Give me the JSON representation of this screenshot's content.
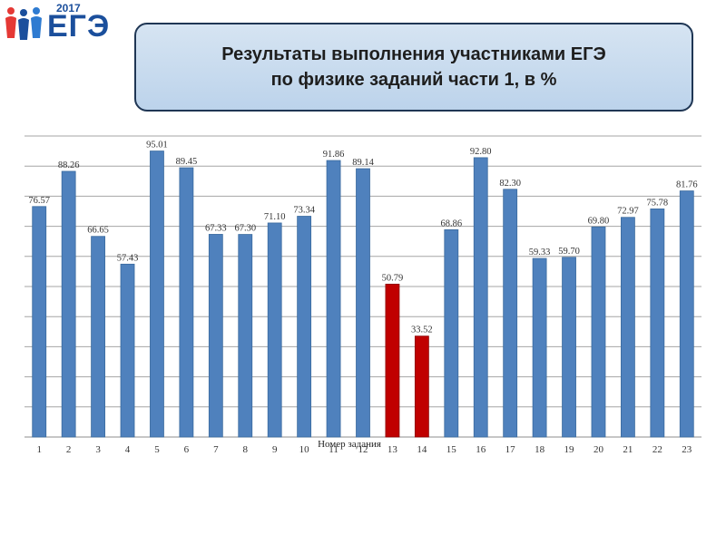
{
  "logo": {
    "year": "2017",
    "word": "ЕГЭ"
  },
  "header": {
    "title_line1": "Результаты выполнения участниками ЕГЭ",
    "title_line2": "по физике заданий части 1, в %"
  },
  "chart_data": {
    "type": "bar",
    "title": "Результаты выполнения участниками ЕГЭ по физике заданий части 1, в %",
    "xlabel": "Номер задания",
    "ylabel": "",
    "categories": [
      "1",
      "2",
      "3",
      "4",
      "5",
      "6",
      "7",
      "8",
      "9",
      "10",
      "11",
      "12",
      "13",
      "14",
      "15",
      "16",
      "17",
      "18",
      "19",
      "20",
      "21",
      "22",
      "23"
    ],
    "values": [
      76.57,
      88.26,
      66.65,
      57.43,
      95.01,
      89.45,
      67.33,
      67.3,
      71.1,
      73.34,
      91.86,
      89.14,
      50.79,
      33.52,
      68.86,
      92.8,
      82.3,
      59.33,
      59.7,
      69.8,
      72.97,
      75.78,
      81.76
    ],
    "value_labels": [
      "76.57",
      "88.26",
      "66.65",
      "57.43",
      "95.01",
      "89.45",
      "67.33",
      "67.30",
      "71.10",
      "73.34",
      "91.86",
      "89.14",
      "50.79",
      "33.52",
      "68.86",
      "92.80",
      "82.30",
      "59.33",
      "59.70",
      "69.80",
      "72.97",
      "75.78",
      "81.76"
    ],
    "bar_colors": [
      "#4f81bd",
      "#4f81bd",
      "#4f81bd",
      "#4f81bd",
      "#4f81bd",
      "#4f81bd",
      "#4f81bd",
      "#4f81bd",
      "#4f81bd",
      "#4f81bd",
      "#4f81bd",
      "#4f81bd",
      "#c00000",
      "#c00000",
      "#4f81bd",
      "#4f81bd",
      "#4f81bd",
      "#4f81bd",
      "#4f81bd",
      "#4f81bd",
      "#4f81bd",
      "#4f81bd",
      "#4f81bd"
    ],
    "ylim": [
      0,
      100
    ],
    "y_gridlines": [
      0,
      10,
      20,
      30,
      40,
      50,
      60,
      70,
      80,
      90,
      100
    ],
    "y_tick_labels": false,
    "grid": true,
    "legend": "none"
  }
}
